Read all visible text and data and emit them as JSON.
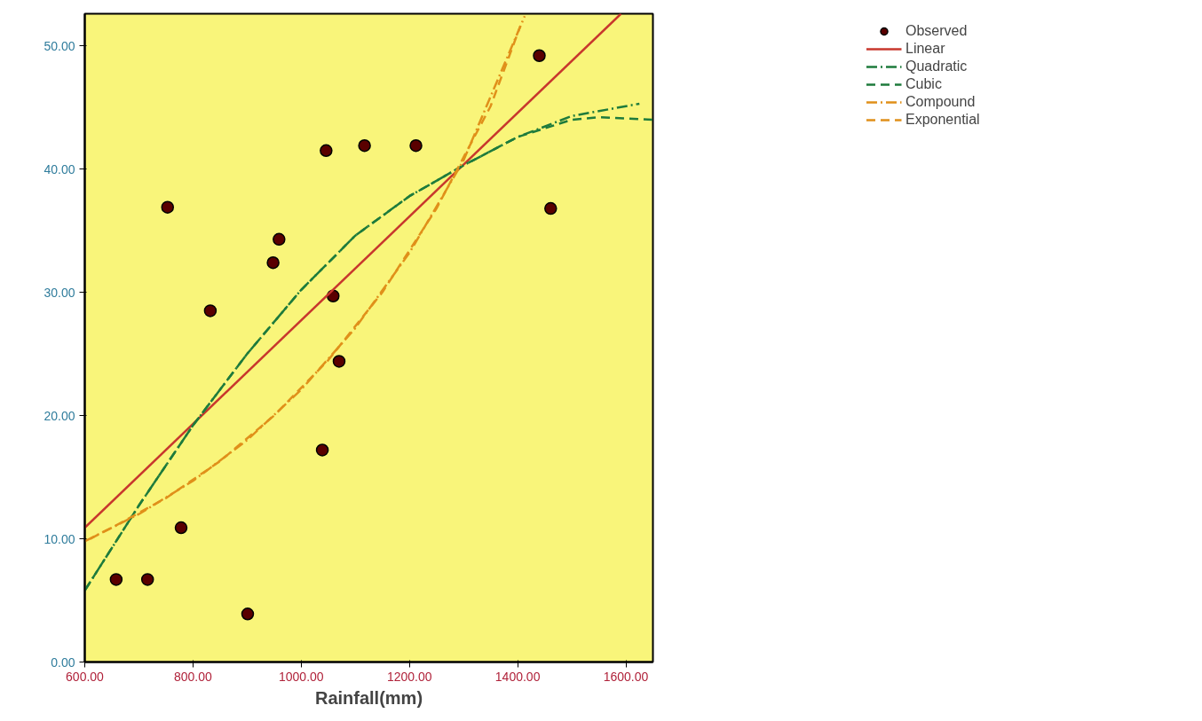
{
  "chart_data": {
    "type": "scatter",
    "xlabel": "Rainfall(mm)",
    "xlim": [
      600,
      1650
    ],
    "ylim": [
      0,
      52.6
    ],
    "xticks": [
      {
        "value": 600,
        "label": "600.00"
      },
      {
        "value": 800,
        "label": "800.00"
      },
      {
        "value": 1000,
        "label": "1000.00"
      },
      {
        "value": 1200,
        "label": "1200.00"
      },
      {
        "value": 1400,
        "label": "1400.00"
      },
      {
        "value": 1600,
        "label": "1600.00"
      }
    ],
    "yticks": [
      {
        "value": 0,
        "label": "0.00"
      },
      {
        "value": 10,
        "label": "10.00"
      },
      {
        "value": 20,
        "label": "20.00"
      },
      {
        "value": 30,
        "label": "30.00"
      },
      {
        "value": 40,
        "label": "40.00"
      },
      {
        "value": 50,
        "label": "50.00"
      }
    ],
    "grid": false,
    "legend": "top right",
    "series": [
      {
        "name": "Observed",
        "marker": "circle",
        "color": "#5a0000",
        "x": [
          658,
          716,
          753,
          778,
          832,
          901,
          948,
          959,
          1039,
          1046,
          1059,
          1070,
          1117,
          1212,
          1440,
          1461
        ],
        "values": [
          6.7,
          6.7,
          36.9,
          10.9,
          28.5,
          3.9,
          32.4,
          34.3,
          17.2,
          41.5,
          29.7,
          24.4,
          41.9,
          41.9,
          49.2,
          36.8
        ]
      },
      {
        "name": "Linear",
        "type": "line",
        "line_style": "solid",
        "color": "#c8372d",
        "x": [
          600,
          1591
        ],
        "values": [
          10.9,
          52.6
        ]
      },
      {
        "name": "Quadratic",
        "type": "line",
        "line_style": "dashdot",
        "color": "#1e7b3c",
        "x": [
          600,
          700,
          800,
          900,
          1000,
          1100,
          1200,
          1300,
          1400,
          1500,
          1625
        ],
        "values": [
          5.8,
          12.7,
          19.2,
          25.0,
          30.2,
          34.6,
          37.8,
          40.3,
          42.6,
          44.3,
          45.3
        ]
      },
      {
        "name": "Cubic",
        "type": "line",
        "line_style": "dashed",
        "color": "#1e7b3c",
        "x": [
          600,
          700,
          800,
          900,
          1000,
          1100,
          1200,
          1300,
          1400,
          1500,
          1550,
          1650
        ],
        "values": [
          5.8,
          12.7,
          19.2,
          25.0,
          30.2,
          34.6,
          37.8,
          40.3,
          42.6,
          44.0,
          44.2,
          44.0
        ]
      },
      {
        "name": "Compound",
        "type": "line",
        "line_style": "dashdot",
        "color": "#e0901a",
        "x": [
          600,
          700,
          800,
          900,
          1000,
          1100,
          1200,
          1300,
          1413
        ],
        "values": [
          9.8,
          12.0,
          14.7,
          18.0,
          22.1,
          27.1,
          33.2,
          40.7,
          52.4
        ]
      },
      {
        "name": "Exponential",
        "type": "line",
        "line_style": "dashed",
        "color": "#e0901a",
        "x": [
          610,
          650,
          750,
          850,
          950,
          1050,
          1150,
          1250,
          1350,
          1405
        ],
        "values": [
          10.0,
          10.9,
          13.3,
          16.3,
          20.0,
          24.5,
          30.0,
          36.8,
          45.1,
          51.6
        ]
      }
    ]
  }
}
